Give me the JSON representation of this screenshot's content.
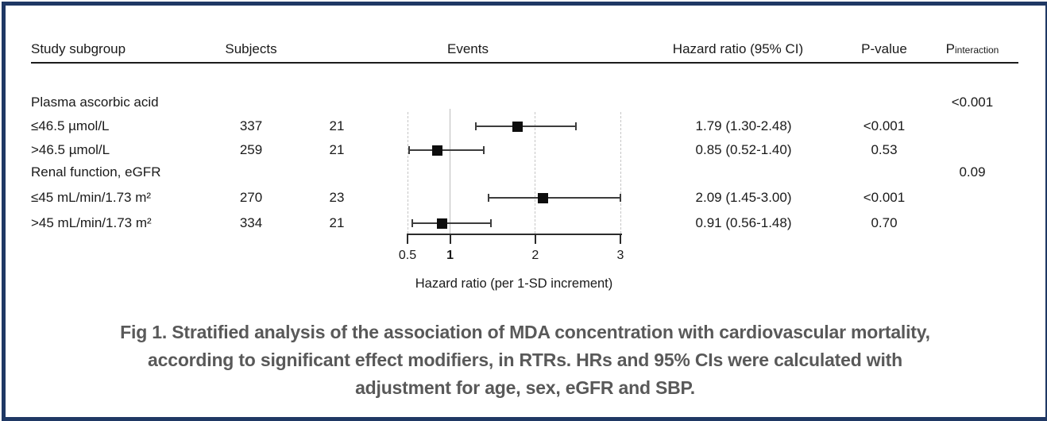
{
  "figure": {
    "border_color": "#1f3864",
    "caption_color": "#595959",
    "caption": {
      "lines": [
        "Fig 1. Stratified analysis of the association of MDA concentration with cardiovascular mortality,",
        "according to significant effect modifiers, in RTRs. HRs and 95% CIs were calculated with",
        "adjustment for age, sex, eGFR and SBP."
      ]
    }
  },
  "table": {
    "headers": {
      "subgroup": "Study subgroup",
      "subjects": "Subjects",
      "events": "Events",
      "hazard_ratio": "Hazard ratio (95% CI)",
      "p_value": "P-value",
      "p_interaction_main": "P",
      "p_interaction_sub": "interaction"
    },
    "rows": [
      {
        "label": "Plasma ascorbic acid",
        "subjects": "",
        "events": "",
        "hr_text": "",
        "p_value": "",
        "p_interaction": "<0.001"
      },
      {
        "label": "≤46.5 µmol/L",
        "subjects": "337",
        "events": "21",
        "hr_text": "1.79 (1.30-2.48)",
        "p_value": "<0.001",
        "p_interaction": ""
      },
      {
        "label": ">46.5 µmol/L",
        "subjects": "259",
        "events": "21",
        "hr_text": "0.85 (0.52-1.40)",
        "p_value": "0.53",
        "p_interaction": ""
      },
      {
        "label": "Renal function, eGFR",
        "subjects": "",
        "events": "",
        "hr_text": "",
        "p_value": "",
        "p_interaction": "0.09"
      },
      {
        "label": "≤45 mL/min/1.73 m²",
        "subjects": "270",
        "events": "23",
        "hr_text": "2.09 (1.45-3.00)",
        "p_value": "<0.001",
        "p_interaction": ""
      },
      {
        "label": ">45 mL/min/1.73 m²",
        "subjects": "334",
        "events": "21",
        "hr_text": "0.91 (0.56-1.48)",
        "p_value": "0.70",
        "p_interaction": ""
      }
    ]
  },
  "chart_data": {
    "type": "scatter",
    "subtype": "forest-plot",
    "title": "",
    "xlabel": "Hazard ratio (per 1-SD increment)",
    "ylabel": "",
    "scale": "linear",
    "xlim": [
      0.5,
      3
    ],
    "x_ticks": [
      "0.5",
      "1",
      "2",
      "3"
    ],
    "x_tick_values": [
      0.5,
      1,
      2,
      3
    ],
    "bold_tick": 1,
    "reference_line": 1,
    "dashed_gridlines": [
      0.5,
      2,
      3
    ],
    "grid": "vertical-only",
    "series": [
      {
        "name": "≤46.5 µmol/L",
        "subjects": 337,
        "events": 21,
        "hr": 1.79,
        "ci_low": 1.3,
        "ci_high": 2.48,
        "p_value": "<0.001",
        "row_index": 1
      },
      {
        "name": ">46.5 µmol/L",
        "subjects": 259,
        "events": 21,
        "hr": 0.85,
        "ci_low": 0.52,
        "ci_high": 1.4,
        "p_value": "0.53",
        "row_index": 2
      },
      {
        "name": "≤45 mL/min/1.73 m²",
        "subjects": 270,
        "events": 23,
        "hr": 2.09,
        "ci_low": 1.45,
        "ci_high": 3.0,
        "p_value": "<0.001",
        "row_index": 4
      },
      {
        "name": ">45 mL/min/1.73 m²",
        "subjects": 334,
        "events": 21,
        "hr": 0.91,
        "ci_low": 0.56,
        "ci_high": 1.48,
        "p_value": "0.70",
        "row_index": 5
      }
    ],
    "group_p_interaction": [
      {
        "group": "Plasma ascorbic acid",
        "p_interaction": "<0.001"
      },
      {
        "group": "Renal function, eGFR",
        "p_interaction": "0.09"
      }
    ]
  }
}
